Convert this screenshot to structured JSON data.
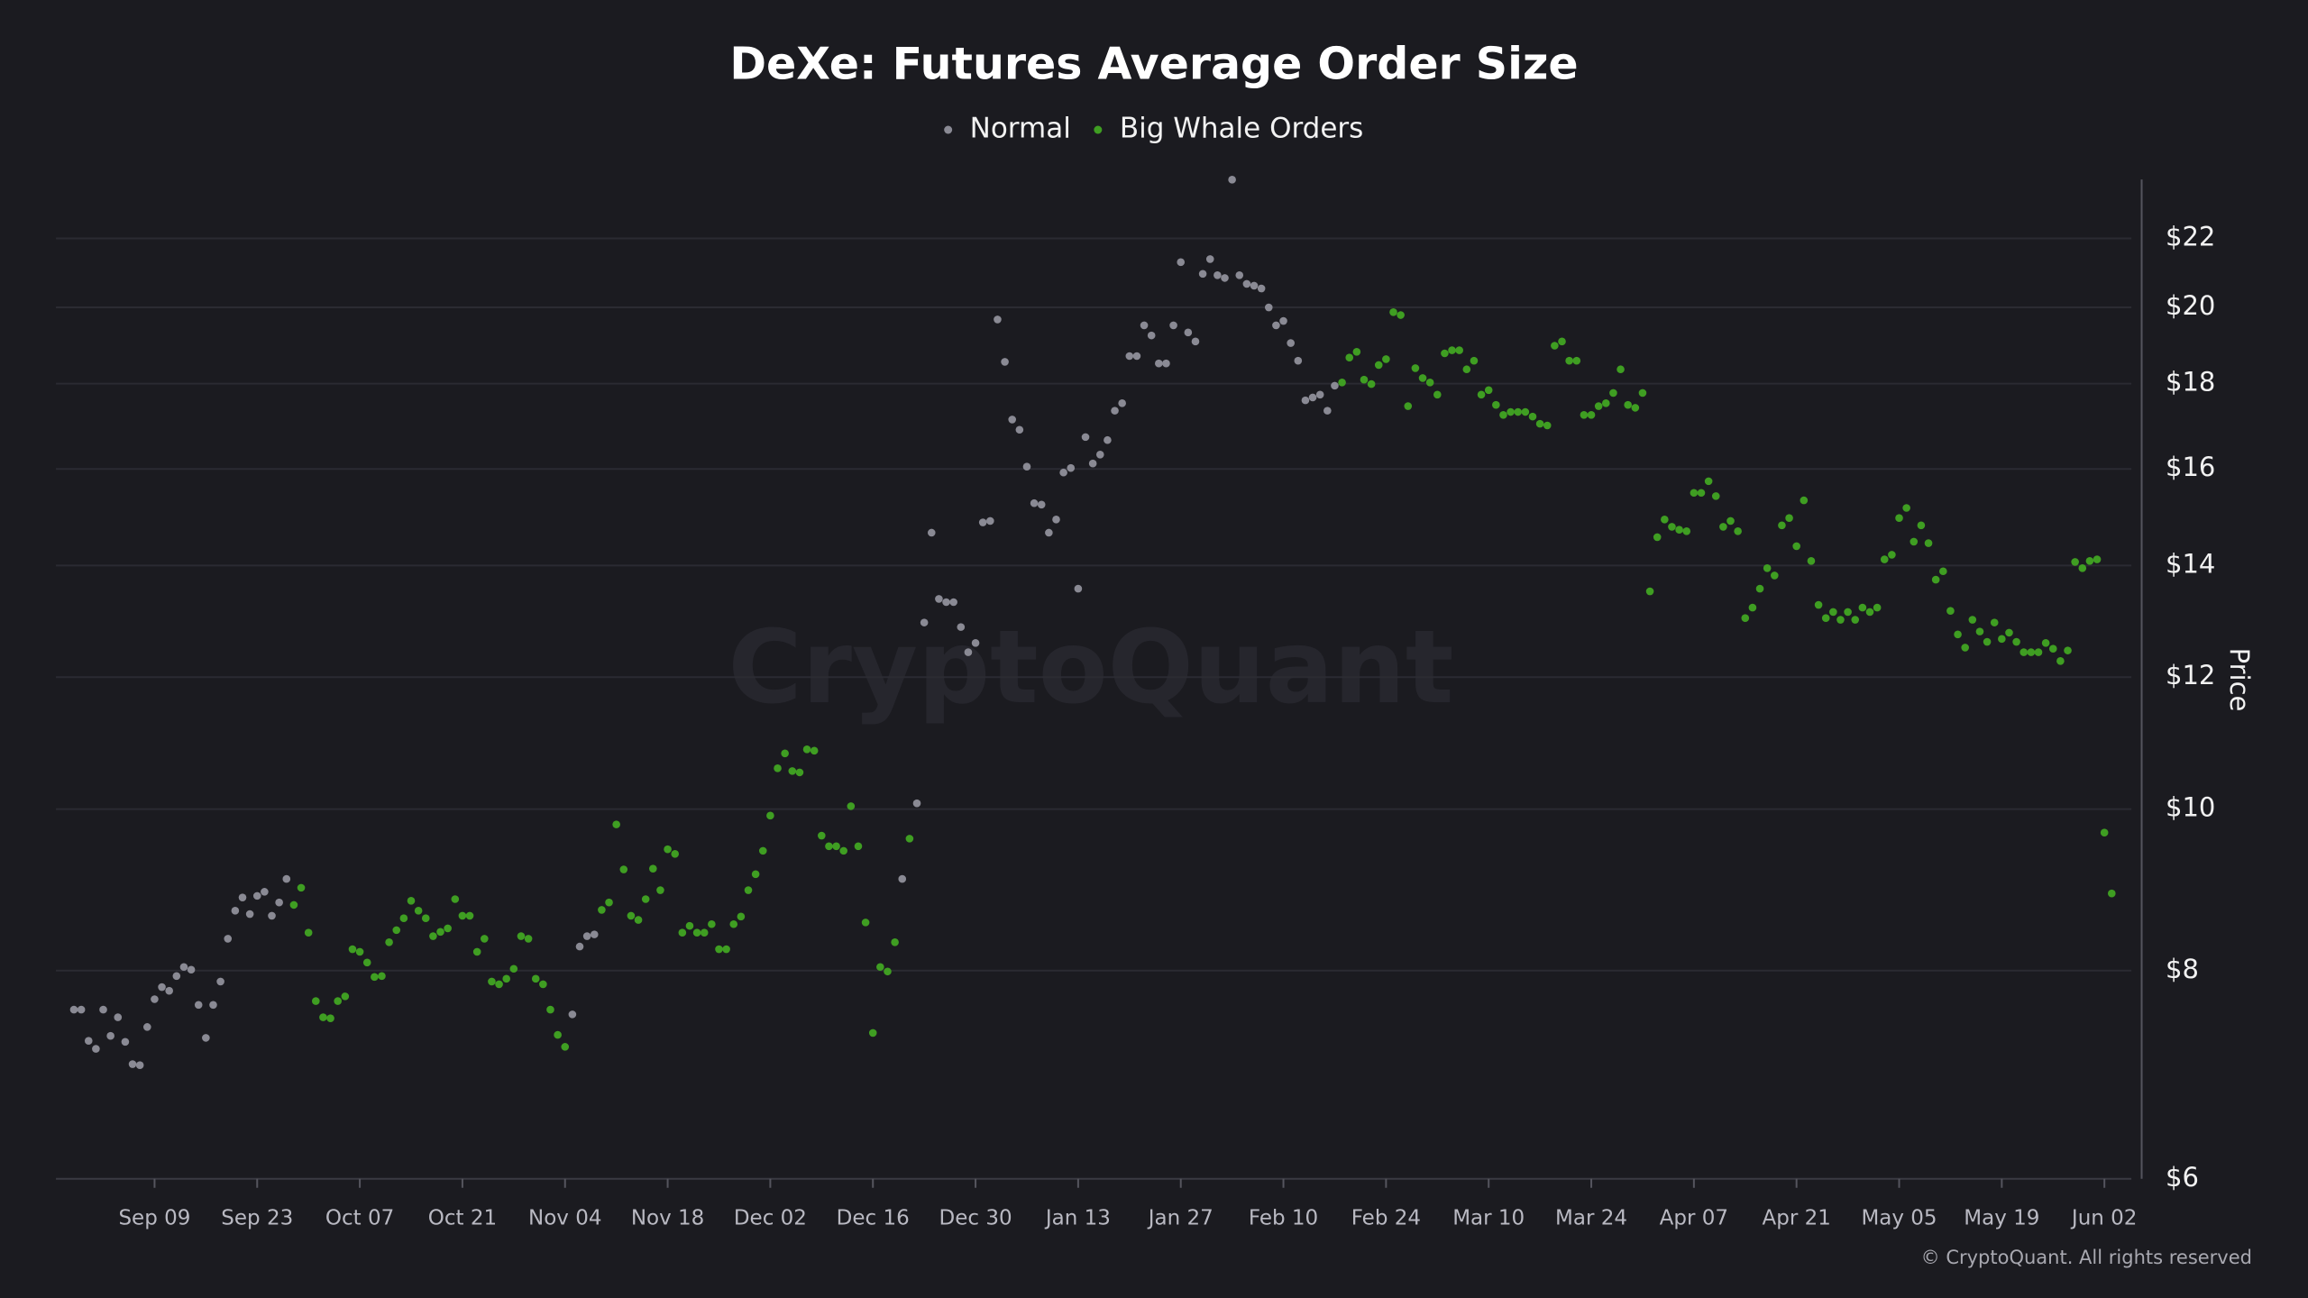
{
  "chart_data": {
    "type": "scatter",
    "title": "DeXe: Futures Average Order Size",
    "y_label": "Price",
    "watermark": "CryptoQuant",
    "copyright": "© CryptoQuant. All rights reserved",
    "y_scale": "log",
    "grid": true,
    "ylim": [
      6,
      24
    ],
    "yticks": [
      {
        "value": 6,
        "label": "$6"
      },
      {
        "value": 8,
        "label": "$8"
      },
      {
        "value": 10,
        "label": "$10"
      },
      {
        "value": 12,
        "label": "$12"
      },
      {
        "value": 14,
        "label": "$14"
      },
      {
        "value": 16,
        "label": "$16"
      },
      {
        "value": 18,
        "label": "$18"
      },
      {
        "value": 20,
        "label": "$20"
      },
      {
        "value": 22,
        "label": "$22"
      }
    ],
    "categories": [
      null,
      null,
      null,
      null,
      null,
      null,
      null,
      null,
      null,
      null,
      null,
      "Sep 09",
      null,
      null,
      null,
      null,
      null,
      null,
      null,
      null,
      null,
      null,
      null,
      null,
      null,
      "Sep 23",
      null,
      null,
      null,
      null,
      null,
      null,
      null,
      null,
      null,
      null,
      null,
      null,
      null,
      "Oct 07",
      null,
      null,
      null,
      null,
      null,
      null,
      null,
      null,
      null,
      null,
      null,
      null,
      null,
      "Oct 21",
      null,
      null,
      null,
      null,
      null,
      null,
      null,
      null,
      null,
      null,
      null,
      null,
      null,
      "Nov 04",
      null,
      null,
      null,
      null,
      null,
      null,
      null,
      null,
      null,
      null,
      null,
      null,
      null,
      "Nov 18",
      null,
      null,
      null,
      null,
      null,
      null,
      null,
      null,
      null,
      null,
      null,
      null,
      null,
      "Dec 02",
      null,
      null,
      null,
      null,
      null,
      null,
      null,
      null,
      null,
      null,
      null,
      null,
      null,
      "Dec 16",
      null,
      null,
      null,
      null,
      null,
      null,
      null,
      null,
      null,
      null,
      null,
      null,
      null,
      "Dec 30",
      null,
      null,
      null,
      null,
      null,
      null,
      null,
      null,
      null,
      null,
      null,
      null,
      null,
      "Jan 13",
      null,
      null,
      null,
      null,
      null,
      null,
      null,
      null,
      null,
      null,
      null,
      null,
      null,
      "Jan 27",
      null,
      null,
      null,
      null,
      null,
      null,
      null,
      null,
      null,
      null,
      null,
      null,
      null,
      "Feb 10",
      null,
      null,
      null,
      null,
      null,
      null,
      null,
      null,
      null,
      null,
      null,
      null,
      null,
      "Feb 24",
      null,
      null,
      null,
      null,
      null,
      null,
      null,
      null,
      null,
      null,
      null,
      null,
      null,
      "Mar 10",
      null,
      null,
      null,
      null,
      null,
      null,
      null,
      null,
      null,
      null,
      null,
      null,
      null,
      "Mar 24",
      null,
      null,
      null,
      null,
      null,
      null,
      null,
      null,
      null,
      null,
      null,
      null,
      null,
      "Apr 07",
      null,
      null,
      null,
      null,
      null,
      null,
      null,
      null,
      null,
      null,
      null,
      null,
      null,
      "Apr 21",
      null,
      null,
      null,
      null,
      null,
      null,
      null,
      null,
      null,
      null,
      null,
      null,
      null,
      "May 05",
      null,
      null,
      null,
      null,
      null,
      null,
      null,
      null,
      null,
      null,
      null,
      null,
      null,
      "May 19",
      null,
      null,
      null,
      null,
      null,
      null,
      null,
      null,
      null,
      null,
      null,
      null,
      null,
      "Jun 02",
      null
    ],
    "series": [
      {
        "name": "Normal",
        "color": "#8a8a94",
        "values": [
          7.58,
          7.58,
          7.26,
          7.18,
          7.58,
          7.31,
          7.5,
          7.25,
          7.03,
          7.02,
          7.4,
          7.69,
          7.82,
          7.78,
          7.94,
          8.04,
          8.01,
          7.63,
          7.29,
          7.63,
          7.88,
          8.36,
          8.69,
          8.85,
          8.65,
          8.87,
          8.92,
          8.63,
          8.79,
          9.08,
          null,
          null,
          null,
          null,
          null,
          null,
          null,
          null,
          null,
          null,
          null,
          null,
          null,
          null,
          null,
          null,
          null,
          null,
          null,
          null,
          null,
          null,
          null,
          null,
          null,
          null,
          null,
          null,
          null,
          null,
          null,
          null,
          null,
          null,
          null,
          null,
          null,
          null,
          7.53,
          8.27,
          8.39,
          8.41,
          null,
          null,
          null,
          null,
          null,
          null,
          null,
          null,
          null,
          null,
          null,
          null,
          null,
          null,
          null,
          null,
          null,
          null,
          null,
          null,
          null,
          null,
          null,
          null,
          null,
          null,
          null,
          null,
          null,
          null,
          null,
          null,
          null,
          null,
          null,
          null,
          null,
          null,
          null,
          null,
          null,
          9.08,
          null,
          10.08,
          12.94,
          14.65,
          13.37,
          13.31,
          13.31,
          12.86,
          12.42,
          12.58,
          14.86,
          14.89,
          19.67,
          18.55,
          17.13,
          16.89,
          16.05,
          15.26,
          15.23,
          14.65,
          14.92,
          15.92,
          16.02,
          13.56,
          16.72,
          16.12,
          16.32,
          16.65,
          17.34,
          17.52,
          18.7,
          18.7,
          19.51,
          19.24,
          18.51,
          18.51,
          19.51,
          21.29,
          19.32,
          19.08,
          20.95,
          21.38,
          20.91,
          20.83,
          23.86,
          20.91,
          20.66,
          20.61,
          20.53,
          20.0,
          19.51,
          19.63,
          19.04,
          18.58,
          17.59,
          17.66,
          17.73,
          17.34,
          17.95,
          null,
          null,
          null,
          null,
          null,
          null,
          null,
          null,
          null,
          null,
          null,
          null,
          null,
          null,
          null,
          null,
          null,
          null,
          null,
          null,
          null,
          null,
          null,
          null,
          null,
          null,
          null,
          null,
          null,
          null,
          null,
          null,
          null,
          null,
          null,
          null,
          null,
          null,
          null,
          null,
          null,
          null,
          null,
          null,
          null,
          null,
          null,
          null,
          null,
          null,
          null,
          null,
          null,
          null,
          null,
          null,
          null,
          null,
          null,
          null,
          null,
          null,
          null,
          null,
          null,
          null,
          null,
          null,
          null,
          null,
          null,
          null,
          null,
          null,
          null,
          null,
          null,
          null,
          null,
          null,
          null,
          null,
          null,
          null,
          null,
          null,
          null,
          null,
          null,
          null,
          null,
          null,
          null,
          null,
          null,
          null,
          null,
          null,
          null,
          null,
          null,
          null,
          null,
          null,
          null,
          null
        ]
      },
      {
        "name": "Big Whale Orders",
        "color": "#3f9e22",
        "values": [
          null,
          null,
          null,
          null,
          null,
          null,
          null,
          null,
          null,
          null,
          null,
          null,
          null,
          null,
          null,
          null,
          null,
          null,
          null,
          null,
          null,
          null,
          null,
          null,
          null,
          null,
          null,
          null,
          null,
          null,
          8.76,
          8.97,
          8.43,
          7.67,
          7.5,
          7.49,
          7.67,
          7.72,
          8.24,
          8.21,
          8.09,
          7.93,
          7.94,
          8.32,
          8.46,
          8.6,
          8.81,
          8.69,
          8.6,
          8.39,
          8.44,
          8.48,
          8.83,
          8.63,
          8.63,
          8.21,
          8.36,
          7.88,
          7.85,
          7.91,
          8.02,
          8.39,
          8.36,
          7.91,
          7.85,
          7.58,
          7.32,
          7.2,
          null,
          null,
          null,
          null,
          8.7,
          8.79,
          9.79,
          9.2,
          8.63,
          8.58,
          8.83,
          9.21,
          8.94,
          9.46,
          9.4,
          8.43,
          8.51,
          8.43,
          8.43,
          8.53,
          8.24,
          8.24,
          8.53,
          8.62,
          8.94,
          9.14,
          9.44,
          9.91,
          10.58,
          10.8,
          10.54,
          10.52,
          10.86,
          10.84,
          9.64,
          9.5,
          9.5,
          9.44,
          10.04,
          9.5,
          8.55,
          7.34,
          8.04,
          7.99,
          8.32,
          null,
          9.6,
          null,
          null,
          null,
          null,
          null,
          null,
          null,
          null,
          null,
          null,
          null,
          null,
          null,
          null,
          null,
          null,
          null,
          null,
          null,
          null,
          null,
          null,
          null,
          null,
          null,
          null,
          null,
          null,
          null,
          null,
          null,
          null,
          null,
          null,
          null,
          null,
          null,
          null,
          null,
          null,
          null,
          null,
          null,
          null,
          null,
          null,
          null,
          null,
          null,
          null,
          null,
          null,
          null,
          null,
          null,
          null,
          null,
          null,
          18.03,
          18.66,
          18.81,
          18.1,
          17.99,
          18.47,
          18.62,
          19.87,
          19.79,
          17.45,
          18.39,
          18.14,
          18.03,
          17.73,
          18.77,
          18.85,
          18.85,
          18.36,
          18.58,
          17.73,
          17.84,
          17.48,
          17.24,
          17.31,
          17.31,
          17.31,
          17.2,
          17.03,
          16.99,
          18.97,
          19.08,
          18.58,
          18.58,
          17.24,
          17.24,
          17.45,
          17.52,
          17.77,
          18.36,
          17.48,
          17.41,
          17.77,
          13.51,
          14.56,
          14.92,
          14.77,
          14.71,
          14.68,
          15.48,
          15.48,
          15.73,
          15.41,
          14.77,
          14.89,
          14.68,
          13.02,
          13.21,
          13.56,
          13.95,
          13.81,
          14.8,
          14.95,
          14.38,
          15.32,
          14.09,
          13.26,
          13.02,
          13.13,
          12.99,
          13.13,
          12.99,
          13.21,
          13.13,
          13.21,
          14.12,
          14.21,
          14.95,
          15.16,
          14.47,
          14.8,
          14.44,
          13.73,
          13.89,
          13.15,
          12.73,
          12.5,
          12.99,
          12.78,
          12.6,
          12.94,
          12.65,
          12.76,
          12.6,
          12.42,
          12.42,
          12.42,
          12.58,
          12.48,
          12.27,
          12.45,
          14.07,
          13.95,
          14.09,
          14.12,
          9.68,
          8.9
        ]
      }
    ]
  }
}
